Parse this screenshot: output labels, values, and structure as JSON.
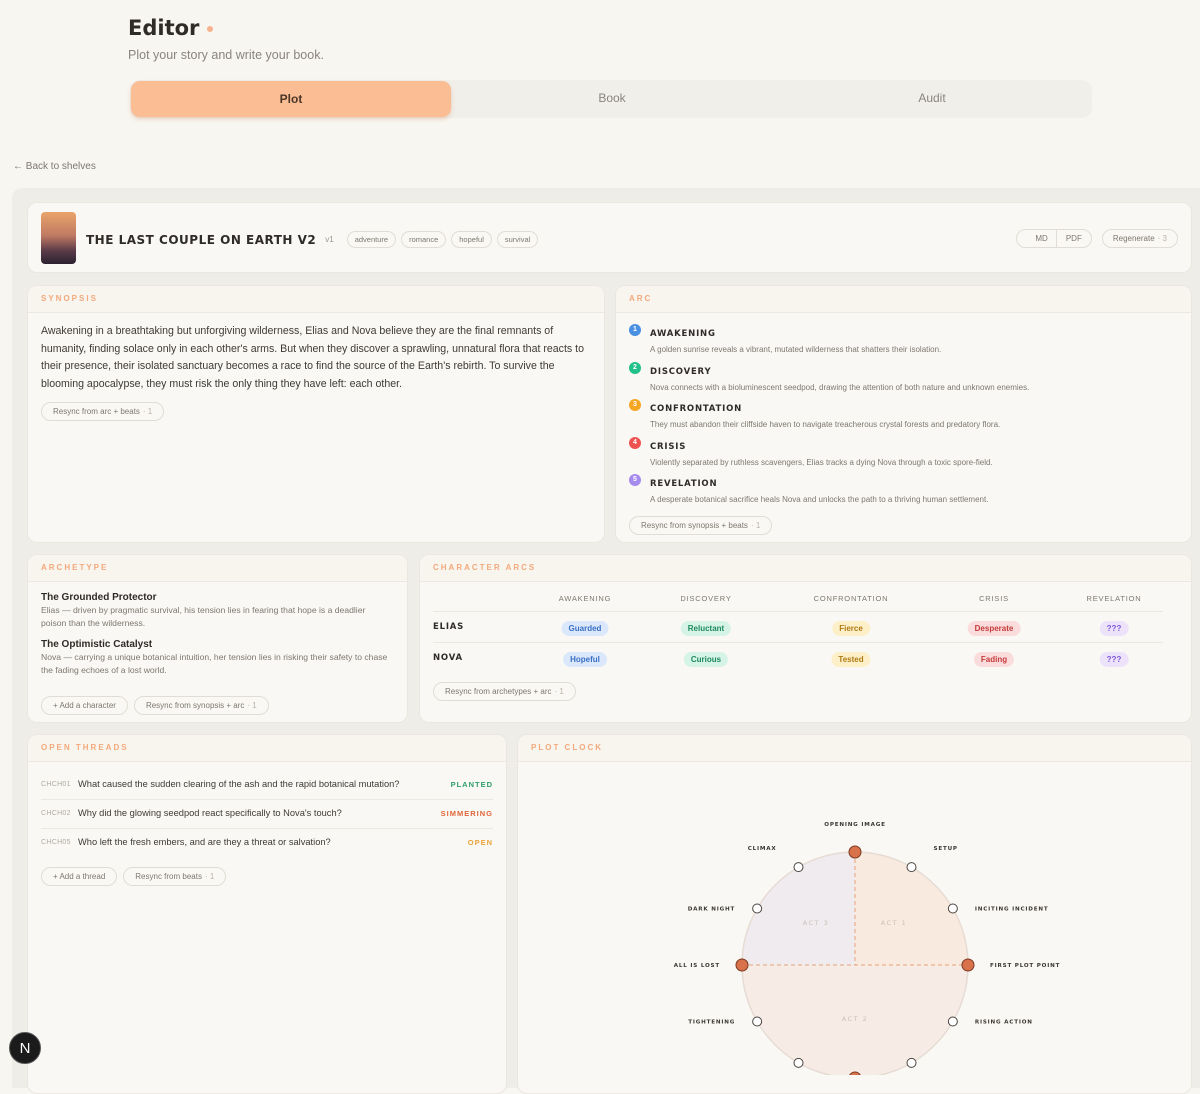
{
  "header": {
    "title": "Editor",
    "subtitle": "Plot your story and write your book."
  },
  "tabs": [
    "Plot",
    "Book",
    "Audit"
  ],
  "back": "← Back to shelves",
  "book": {
    "title": "THE LAST COUPLE ON EARTH V2",
    "version": "v1",
    "tags": [
      "adventure",
      "romance",
      "hopeful",
      "survival"
    ],
    "md": "MD",
    "pdf": "PDF",
    "regenerate": "Regenerate",
    "regenerate_count": "· 3"
  },
  "synopsis": {
    "heading": "SYNOPSIS",
    "text": "Awakening in a breathtaking but unforgiving wilderness, Elias and Nova believe they are the final remnants of humanity, finding solace only in each other's arms. But when they discover a sprawling, unnatural flora that reacts to their presence, their isolated sanctuary becomes a race to find the source of the Earth's rebirth. To survive the blooming apocalypse, they must risk the only thing they have left: each other.",
    "resync": "Resync from arc + beats",
    "resync_count": "· 1"
  },
  "arc": {
    "heading": "ARC",
    "beats": [
      {
        "number": "1",
        "title": "AWAKENING",
        "text": "A golden sunrise reveals a vibrant, mutated wilderness that shatters their isolation.",
        "color": "#4a90e2"
      },
      {
        "number": "2",
        "title": "DISCOVERY",
        "text": "Nova connects with a bioluminescent seedpod, drawing the attention of both nature and unknown enemies.",
        "color": "#22c08a"
      },
      {
        "number": "3",
        "title": "CONFRONTATION",
        "text": "They must abandon their cliffside haven to navigate treacherous crystal forests and predatory flora.",
        "color": "#f5a623"
      },
      {
        "number": "4",
        "title": "CRISIS",
        "text": "Violently separated by ruthless scavengers, Elias tracks a dying Nova through a toxic spore-field.",
        "color": "#ef5350"
      },
      {
        "number": "5",
        "title": "REVELATION",
        "text": "A desperate botanical sacrifice heals Nova and unlocks the path to a thriving human settlement.",
        "color": "#a68bef"
      }
    ],
    "resync": "Resync from synopsis + beats",
    "resync_count": "· 1"
  },
  "archetype": {
    "heading": "ARCHETYPE",
    "items": [
      {
        "title": "The Grounded Protector",
        "text": "Elias — driven by pragmatic survival, his tension lies in fearing that hope is a deadlier poison than the wilderness."
      },
      {
        "title": "The Optimistic Catalyst",
        "text": "Nova — carrying a unique botanical intuition, her tension lies in risking their safety to chase the fading echoes of a lost world."
      }
    ],
    "add": "+ Add a character",
    "resync": "Resync from synopsis + arc",
    "resync_count": "· 1"
  },
  "character_arcs": {
    "heading": "CHARACTER ARCS",
    "columns": [
      {
        "label": "AWAKENING",
        "color": "#3a6fc4",
        "bg": "#dbe8fb"
      },
      {
        "label": "DISCOVERY",
        "color": "#1f8a5e",
        "bg": "#d5f3e6"
      },
      {
        "label": "CONFRONTATION",
        "color": "#b07a12",
        "bg": "#fdf0c8"
      },
      {
        "label": "CRISIS",
        "color": "#c53a3a",
        "bg": "#fbdcdc"
      },
      {
        "label": "REVELATION",
        "color": "#7d55d6",
        "bg": "#ece3fb"
      }
    ],
    "rows": [
      {
        "name": "ELIAS",
        "states": [
          "Guarded",
          "Reluctant",
          "Fierce",
          "Desperate",
          "???"
        ]
      },
      {
        "name": "NOVA",
        "states": [
          "Hopeful",
          "Curious",
          "Tested",
          "Fading",
          "???"
        ]
      }
    ],
    "resync": "Resync from archetypes + arc",
    "resync_count": "· 1"
  },
  "open_threads": {
    "heading": "OPEN THREADS",
    "threads": [
      {
        "id": "CHCH01",
        "question": "What caused the sudden clearing of the ash and the rapid botanical mutation?",
        "status": "PLANTED",
        "color": "#2e9e6a"
      },
      {
        "id": "CHCH02",
        "question": "Why did the glowing seedpod react specifically to Nova's touch?",
        "status": "SIMMERING",
        "color": "#e0663a"
      },
      {
        "id": "CHCH05",
        "question": "Who left the fresh embers, and are they a threat or salvation?",
        "status": "OPEN",
        "color": "#e8a23a"
      }
    ],
    "add": "+ Add a thread",
    "resync": "Resync from beats",
    "resync_count": "· 1"
  },
  "plot_clock": {
    "heading": "PLOT CLOCK",
    "acts": [
      "ACT 1",
      "ACT 2",
      "ACT 3"
    ],
    "points": [
      {
        "label": "OPENING IMAGE",
        "major": true
      },
      {
        "label": "SETUP",
        "major": false
      },
      {
        "label": "INCITING INCIDENT",
        "major": false
      },
      {
        "label": "FIRST PLOT POINT",
        "major": true
      },
      {
        "label": "RISING ACTION",
        "major": false
      },
      {
        "label": null,
        "major": false
      },
      {
        "label": null,
        "major": true
      },
      {
        "label": null,
        "major": false
      },
      {
        "label": "TIGHTENING",
        "major": false
      },
      {
        "label": "ALL IS LOST",
        "major": true
      },
      {
        "label": "DARK NIGHT",
        "major": false
      },
      {
        "label": "CLIMAX",
        "major": false
      }
    ]
  },
  "dev_badge": "N"
}
